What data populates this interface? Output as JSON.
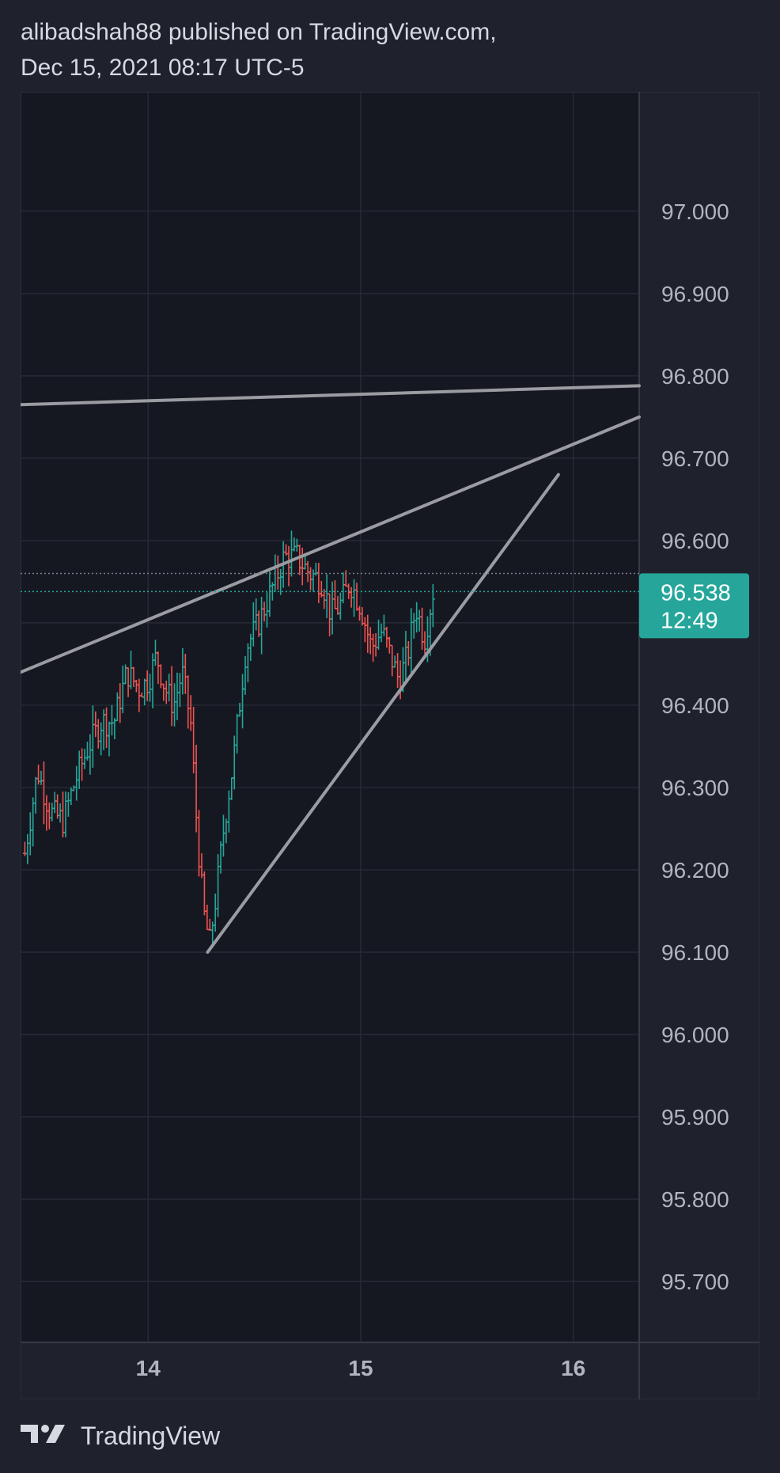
{
  "header": {
    "line1": "alibadshah88 published on TradingView.com,",
    "line2": "Dec 15, 2021 08:17 UTC-5"
  },
  "footer": {
    "brand": "TradingView",
    "logo_icon": "tradingview-logo-icon"
  },
  "colors": {
    "background": "#1f222c",
    "pane": "#161821",
    "grid": "#2a2e39",
    "text": "#b2b5be",
    "up": "#26a69a",
    "down": "#ef5350",
    "trendline": "#9b9ca2",
    "price_badge": "#26a69a"
  },
  "chart_data": {
    "type": "ohlc",
    "y_ticks": [
      "97.000",
      "96.900",
      "96.800",
      "96.700",
      "96.600",
      "96.400",
      "96.300",
      "96.200",
      "96.100",
      "96.000",
      "95.900",
      "95.800",
      "95.700"
    ],
    "y_tick_values": [
      97.0,
      96.9,
      96.8,
      96.7,
      96.6,
      96.4,
      96.3,
      96.2,
      96.1,
      96.0,
      95.9,
      95.8,
      95.7
    ],
    "x_ticks": [
      "14",
      "15",
      "16"
    ],
    "x_tick_values": [
      14,
      15,
      16
    ],
    "last_price": {
      "label": "96.538",
      "value": 96.538,
      "countdown": "12:49"
    },
    "previous_close_value": 96.56,
    "closes": [
      {
        "t": 13.42,
        "v": 96.22
      },
      {
        "t": 13.48,
        "v": 96.32
      },
      {
        "t": 13.54,
        "v": 96.27
      },
      {
        "t": 13.6,
        "v": 96.26
      },
      {
        "t": 13.66,
        "v": 96.31
      },
      {
        "t": 13.72,
        "v": 96.35
      },
      {
        "t": 13.78,
        "v": 96.38
      },
      {
        "t": 13.84,
        "v": 96.38
      },
      {
        "t": 13.9,
        "v": 96.44
      },
      {
        "t": 13.96,
        "v": 96.42
      },
      {
        "t": 14.0,
        "v": 96.43
      },
      {
        "t": 14.04,
        "v": 96.46
      },
      {
        "t": 14.08,
        "v": 96.42
      },
      {
        "t": 14.12,
        "v": 96.4
      },
      {
        "t": 14.16,
        "v": 96.44
      },
      {
        "t": 14.2,
        "v": 96.38
      },
      {
        "t": 14.23,
        "v": 96.25
      },
      {
        "t": 14.26,
        "v": 96.15
      },
      {
        "t": 14.29,
        "v": 96.11
      },
      {
        "t": 14.32,
        "v": 96.17
      },
      {
        "t": 14.36,
        "v": 96.26
      },
      {
        "t": 14.4,
        "v": 96.33
      },
      {
        "t": 14.46,
        "v": 96.47
      },
      {
        "t": 14.52,
        "v": 96.5
      },
      {
        "t": 14.58,
        "v": 96.54
      },
      {
        "t": 14.64,
        "v": 96.58
      },
      {
        "t": 14.7,
        "v": 96.58
      },
      {
        "t": 14.76,
        "v": 96.56
      },
      {
        "t": 14.82,
        "v": 96.55
      },
      {
        "t": 14.86,
        "v": 96.51
      },
      {
        "t": 14.9,
        "v": 96.52
      },
      {
        "t": 14.95,
        "v": 96.55
      },
      {
        "t": 15.0,
        "v": 96.52
      },
      {
        "t": 15.05,
        "v": 96.47
      },
      {
        "t": 15.1,
        "v": 96.49
      },
      {
        "t": 15.14,
        "v": 96.46
      },
      {
        "t": 15.18,
        "v": 96.43
      },
      {
        "t": 15.22,
        "v": 96.46
      },
      {
        "t": 15.26,
        "v": 96.52
      },
      {
        "t": 15.3,
        "v": 96.48
      },
      {
        "t": 15.34,
        "v": 96.538
      }
    ],
    "trendlines": [
      {
        "name": "upper-flat",
        "x1": 13.4,
        "y1": 96.765,
        "x2": 16.31,
        "y2": 96.788
      },
      {
        "name": "upper-rising",
        "x1": 13.4,
        "y1": 96.44,
        "x2": 16.31,
        "y2": 96.75
      },
      {
        "name": "lower-rising",
        "x1": 14.28,
        "y1": 96.1,
        "x2": 15.93,
        "y2": 96.68
      }
    ],
    "y_range": [
      95.626,
      97.145
    ],
    "x_range": [
      13.4,
      16.31
    ],
    "grid": true
  }
}
